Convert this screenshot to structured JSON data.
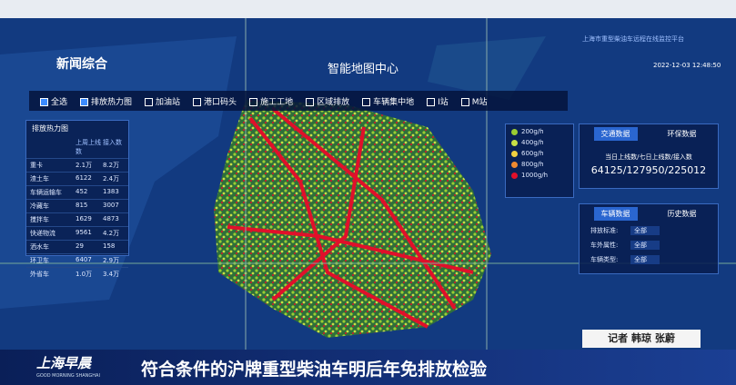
{
  "channel_logo": "新闻综合",
  "platform_title": "上海市重型柴油车远程在线监控平台",
  "timestamp": "2022-12-03 12:48:50",
  "page_title": "智能地图中心",
  "toolbar": {
    "select_all": "全选",
    "layers": [
      "排放热力图",
      "加油站",
      "港口码头",
      "施工工地",
      "区域排放",
      "车辆集中地",
      "I站",
      "M站"
    ]
  },
  "heat_panel": {
    "title": "排放热力图",
    "columns": [
      "上周上线数",
      "接入数"
    ],
    "rows": [
      [
        "重卡",
        "2.1万",
        "8.2万"
      ],
      [
        "渣土车",
        "6122",
        "2.4万"
      ],
      [
        "车辆运输车",
        "452",
        "1383"
      ],
      [
        "冷藏车",
        "815",
        "3007"
      ],
      [
        "搅拌车",
        "1629",
        "4873"
      ],
      [
        "快递物流",
        "9561",
        "4.2万"
      ],
      [
        "洒水车",
        "29",
        "158"
      ],
      [
        "环卫车",
        "6407",
        "2.9万"
      ],
      [
        "外省车",
        "1.0万",
        "3.4万"
      ]
    ]
  },
  "legend": [
    {
      "label": "200g/h",
      "color": "#9acd32"
    },
    {
      "label": "400g/h",
      "color": "#c8e046"
    },
    {
      "label": "600g/h",
      "color": "#f0d040"
    },
    {
      "label": "800g/h",
      "color": "#f08a30"
    },
    {
      "label": "1000g/h",
      "color": "#e0102a"
    }
  ],
  "traffic_panel": {
    "tabs": [
      "交通数据",
      "环保数据"
    ],
    "caption": "当日上线数/七日上线数/接入数",
    "value": "64125/127950/225012"
  },
  "vehicle_panel": {
    "tabs": [
      "车辆数据",
      "历史数据"
    ],
    "filters": [
      [
        "排放标准:",
        "全部"
      ],
      [
        "车外属性:",
        "全部"
      ],
      [
        "车辆类型:",
        "全部"
      ]
    ]
  },
  "reporter": "记者 韩琼 张蔚",
  "show_logo": "上海早晨",
  "show_logo_en": "GOOD MORNING SHANGHAI",
  "headline": "符合条件的沪牌重型柴油车明后年免排放检验"
}
